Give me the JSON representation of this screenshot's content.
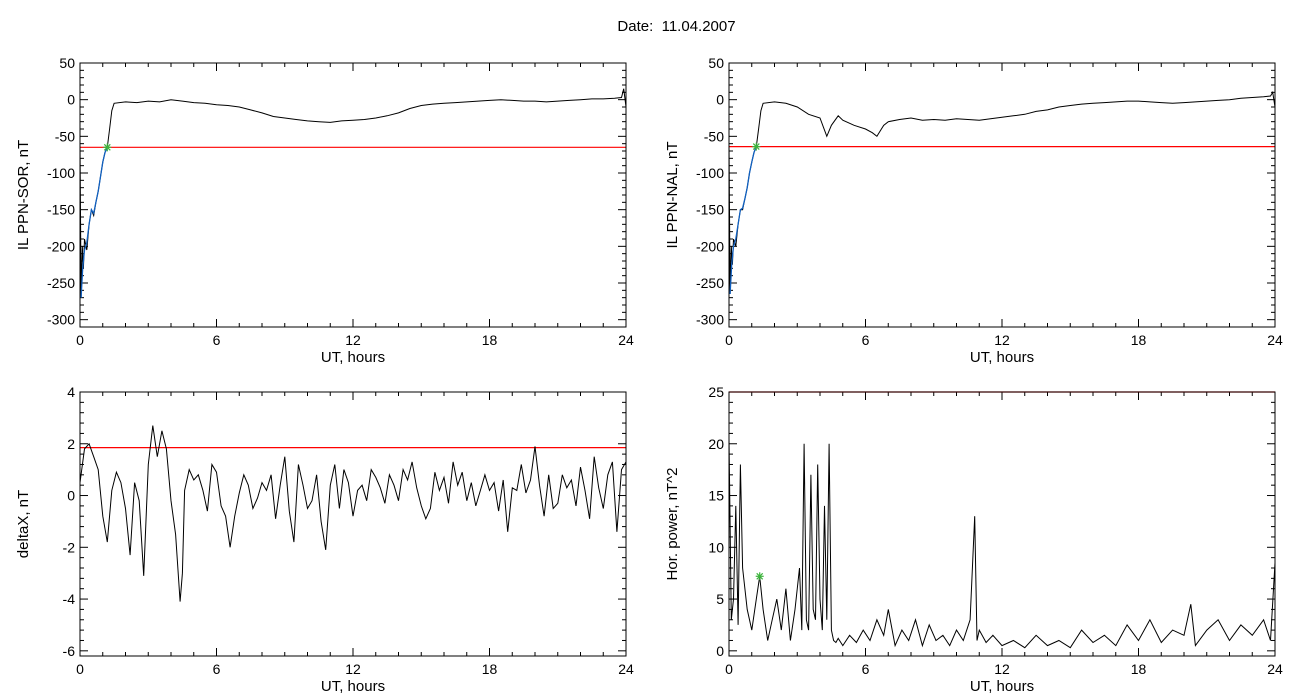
{
  "title": "Date:  11.04.2007",
  "colors": {
    "axis": "#000000",
    "data": "#000000",
    "threshold": "#ff0000",
    "fit": "#1060c0",
    "marker": "#3cb43c"
  },
  "chart_data": [
    {
      "type": "line",
      "id": "sor",
      "xlabel": "UT, hours",
      "ylabel": "IL PPN-SOR, nT",
      "xlim": [
        0,
        24
      ],
      "ylim": [
        -310,
        50
      ],
      "xticks": [
        0,
        6,
        12,
        18,
        24
      ],
      "yticks": [
        50,
        0,
        -50,
        -100,
        -150,
        -200,
        -250,
        -300
      ],
      "threshold": -65,
      "marker": {
        "x": 1.2,
        "y": -65
      },
      "fit_segment": {
        "x": [
          0.05,
          0.12,
          0.2,
          0.3,
          0.4,
          0.5,
          0.6,
          0.7,
          0.8,
          0.9,
          1.0,
          1.1,
          1.2
        ],
        "y": [
          -270,
          -230,
          -205,
          -195,
          -170,
          -150,
          -155,
          -140,
          -125,
          -105,
          -85,
          -72,
          -65
        ]
      },
      "series": [
        {
          "x": [
            0,
            0.05,
            0.1,
            0.15,
            0.2,
            0.3,
            0.4,
            0.5,
            0.6,
            0.7,
            0.8,
            0.9,
            1.0,
            1.1,
            1.2,
            1.3,
            1.4,
            1.5,
            2,
            2.5,
            3,
            3.5,
            4,
            4.5,
            5,
            5.5,
            6,
            6.5,
            7,
            7.5,
            8,
            8.5,
            9,
            9.5,
            10,
            10.5,
            11,
            11.5,
            12,
            12.5,
            13,
            13.5,
            14,
            14.5,
            15,
            15.5,
            16,
            16.5,
            17,
            17.5,
            18,
            18.5,
            19,
            19.5,
            20,
            20.5,
            21,
            21.5,
            22,
            22.5,
            23,
            23.5,
            23.8,
            23.9,
            24
          ],
          "y": [
            -60,
            -270,
            -200,
            -230,
            -190,
            -205,
            -170,
            -150,
            -158,
            -140,
            -125,
            -105,
            -85,
            -72,
            -65,
            -40,
            -15,
            -5,
            -3,
            -4,
            -2,
            -3,
            0,
            -2,
            -4,
            -5,
            -7,
            -8,
            -10,
            -14,
            -18,
            -23,
            -25,
            -27,
            -29,
            -30,
            -31,
            -29,
            -28,
            -27,
            -25,
            -22,
            -18,
            -12,
            -8,
            -6,
            -5,
            -4,
            -3,
            -2,
            -1,
            0,
            -1,
            -2,
            -2,
            -3,
            -2,
            -1,
            0,
            1,
            1,
            2,
            3,
            15,
            -10
          ]
        }
      ]
    },
    {
      "type": "line",
      "id": "nal",
      "xlabel": "UT, hours",
      "ylabel": "IL PPN-NAL, nT",
      "xlim": [
        0,
        24
      ],
      "ylim": [
        -310,
        50
      ],
      "xticks": [
        0,
        6,
        12,
        18,
        24
      ],
      "yticks": [
        50,
        0,
        -50,
        -100,
        -150,
        -200,
        -250,
        -300
      ],
      "threshold": -64,
      "marker": {
        "x": 1.2,
        "y": -64
      },
      "fit_segment": {
        "x": [
          0.05,
          0.12,
          0.2,
          0.3,
          0.4,
          0.5,
          0.6,
          0.7,
          0.8,
          0.9,
          1.0,
          1.1,
          1.2
        ],
        "y": [
          -265,
          -225,
          -200,
          -190,
          -170,
          -150,
          -148,
          -135,
          -120,
          -100,
          -85,
          -72,
          -64
        ]
      },
      "series": [
        {
          "x": [
            0,
            0.05,
            0.1,
            0.15,
            0.2,
            0.3,
            0.4,
            0.5,
            0.6,
            0.7,
            0.8,
            0.9,
            1.0,
            1.1,
            1.2,
            1.3,
            1.4,
            1.5,
            2,
            2.5,
            3,
            3.5,
            4,
            4.3,
            4.5,
            4.8,
            5,
            5.5,
            6,
            6.3,
            6.5,
            6.8,
            7,
            7.5,
            8,
            8.5,
            9,
            9.5,
            10,
            10.5,
            11,
            11.5,
            12,
            12.5,
            13,
            13.5,
            14,
            14.5,
            15,
            15.5,
            16,
            16.5,
            17,
            17.5,
            18,
            18.5,
            19,
            19.5,
            20,
            20.5,
            21,
            21.5,
            22,
            22.5,
            23,
            23.5,
            23.8,
            23.9,
            24
          ],
          "y": [
            -60,
            -265,
            -200,
            -225,
            -190,
            -200,
            -170,
            -150,
            -150,
            -135,
            -120,
            -100,
            -85,
            -72,
            -64,
            -40,
            -15,
            -5,
            -3,
            -5,
            -10,
            -20,
            -25,
            -50,
            -35,
            -22,
            -28,
            -35,
            -40,
            -45,
            -50,
            -35,
            -30,
            -27,
            -25,
            -28,
            -27,
            -28,
            -26,
            -27,
            -28,
            -26,
            -24,
            -22,
            -20,
            -16,
            -14,
            -10,
            -8,
            -6,
            -5,
            -4,
            -3,
            -2,
            -2,
            -3,
            -4,
            -5,
            -4,
            -3,
            -2,
            -1,
            0,
            2,
            3,
            4,
            5,
            10,
            -10
          ]
        }
      ]
    },
    {
      "type": "line",
      "id": "deltax",
      "xlabel": "UT, hours",
      "ylabel": "deltaX, nT",
      "xlim": [
        0,
        24
      ],
      "ylim": [
        -6.2,
        4
      ],
      "xticks": [
        0,
        6,
        12,
        18,
        24
      ],
      "yticks": [
        4,
        2,
        0,
        -2,
        -4,
        -6
      ],
      "threshold": 1.85,
      "series": [
        {
          "x": [
            0,
            0.2,
            0.4,
            0.6,
            0.8,
            1.0,
            1.2,
            1.4,
            1.6,
            1.8,
            2.0,
            2.2,
            2.4,
            2.6,
            2.8,
            3.0,
            3.2,
            3.4,
            3.6,
            3.8,
            4.0,
            4.2,
            4.4,
            4.5,
            4.6,
            4.8,
            5.0,
            5.2,
            5.4,
            5.6,
            5.8,
            6.0,
            6.2,
            6.4,
            6.6,
            6.8,
            7.0,
            7.2,
            7.4,
            7.6,
            7.8,
            8.0,
            8.2,
            8.4,
            8.6,
            8.8,
            9.0,
            9.2,
            9.4,
            9.6,
            9.8,
            10.0,
            10.2,
            10.4,
            10.6,
            10.8,
            11.0,
            11.2,
            11.4,
            11.6,
            11.8,
            12.0,
            12.2,
            12.4,
            12.6,
            12.8,
            13.0,
            13.2,
            13.4,
            13.6,
            13.8,
            14.0,
            14.2,
            14.4,
            14.6,
            14.8,
            15.0,
            15.2,
            15.4,
            15.6,
            15.8,
            16.0,
            16.2,
            16.4,
            16.6,
            16.8,
            17.0,
            17.2,
            17.4,
            17.6,
            17.8,
            18.0,
            18.2,
            18.4,
            18.6,
            18.8,
            19.0,
            19.2,
            19.4,
            19.6,
            19.8,
            20.0,
            20.2,
            20.4,
            20.6,
            20.8,
            21.0,
            21.2,
            21.4,
            21.6,
            21.8,
            22.0,
            22.2,
            22.4,
            22.6,
            22.8,
            23.0,
            23.2,
            23.4,
            23.6,
            23.8,
            24.0
          ],
          "y": [
            0.5,
            1.8,
            2.0,
            1.5,
            1.0,
            -0.8,
            -1.8,
            0.2,
            0.9,
            0.5,
            -0.5,
            -2.3,
            0.5,
            -0.2,
            -3.1,
            1.2,
            2.7,
            1.5,
            2.5,
            1.8,
            -0.2,
            -1.5,
            -4.1,
            -3.0,
            0.2,
            1.0,
            0.6,
            0.8,
            0.2,
            -0.6,
            1.2,
            0.9,
            -0.4,
            -0.8,
            -2.0,
            -0.8,
            0.1,
            0.8,
            0.4,
            -0.5,
            -0.1,
            0.5,
            0.2,
            0.8,
            -0.9,
            0.4,
            1.5,
            -0.6,
            -1.8,
            1.2,
            0.4,
            -0.5,
            -0.2,
            0.8,
            -1.0,
            -2.1,
            0.4,
            1.2,
            -0.5,
            1.0,
            0.5,
            -0.8,
            0.2,
            0.4,
            -0.2,
            1.0,
            0.7,
            0.3,
            -0.3,
            0.8,
            0.4,
            -0.2,
            1.0,
            0.6,
            1.3,
            0.3,
            -0.4,
            -0.9,
            -0.5,
            0.9,
            0.2,
            0.7,
            -0.3,
            1.3,
            0.4,
            0.9,
            -0.2,
            0.5,
            -0.4,
            0.2,
            0.8,
            0.2,
            0.5,
            -0.6,
            0.6,
            -1.4,
            0.3,
            0.2,
            1.2,
            0.1,
            0.6,
            1.9,
            0.4,
            -0.8,
            0.8,
            -0.5,
            -0.3,
            0.8,
            0.3,
            0.6,
            -0.4,
            1.1,
            0.2,
            -0.9,
            1.5,
            0.3,
            -0.5,
            0.8,
            1.3,
            -1.4,
            1.0,
            1.3
          ]
        }
      ]
    },
    {
      "type": "line",
      "id": "hpower",
      "xlabel": "UT, hours",
      "ylabel": "Hor. power, nT^2",
      "xlim": [
        0,
        24
      ],
      "ylim": [
        -0.5,
        25
      ],
      "xticks": [
        0,
        6,
        12,
        18,
        24
      ],
      "yticks": [
        25,
        20,
        15,
        10,
        5,
        0
      ],
      "threshold": 25,
      "marker": {
        "x": 1.35,
        "y": 7.2
      },
      "series": [
        {
          "x": [
            0,
            0.1,
            0.2,
            0.3,
            0.4,
            0.5,
            0.6,
            0.8,
            1.0,
            1.2,
            1.35,
            1.5,
            1.7,
            1.9,
            2.1,
            2.3,
            2.5,
            2.7,
            2.9,
            3.1,
            3.2,
            3.3,
            3.4,
            3.5,
            3.6,
            3.7,
            3.8,
            3.9,
            4.0,
            4.1,
            4.2,
            4.3,
            4.4,
            4.5,
            4.6,
            4.7,
            4.8,
            5.0,
            5.3,
            5.6,
            5.9,
            6.2,
            6.5,
            6.8,
            7.0,
            7.3,
            7.6,
            7.9,
            8.2,
            8.5,
            8.8,
            9.1,
            9.4,
            9.7,
            10.0,
            10.3,
            10.6,
            10.8,
            10.9,
            11.0,
            11.3,
            11.6,
            12.0,
            12.5,
            13.0,
            13.5,
            14.0,
            14.5,
            15.0,
            15.5,
            16.0,
            16.5,
            17.0,
            17.5,
            18.0,
            18.5,
            19.0,
            19.5,
            20.0,
            20.3,
            20.5,
            21.0,
            21.5,
            22.0,
            22.5,
            23.0,
            23.5,
            23.8,
            24.0
          ],
          "y": [
            20.5,
            3,
            5,
            14,
            2.5,
            18,
            8,
            4,
            2,
            5,
            7.2,
            4,
            1,
            3,
            5,
            2,
            6,
            1,
            4,
            8,
            2,
            20,
            3,
            2,
            17,
            4,
            3,
            18,
            5,
            2,
            14,
            3,
            20,
            2,
            1,
            0.8,
            1.2,
            0.5,
            1.5,
            0.8,
            2,
            1,
            3,
            1.5,
            4,
            0.5,
            2,
            1,
            3,
            0.5,
            2.5,
            1,
            1.5,
            0.5,
            2,
            1,
            3,
            13,
            1,
            2,
            0.8,
            1.5,
            0.5,
            1,
            0.3,
            1.5,
            0.5,
            1,
            0.3,
            2,
            0.8,
            1.5,
            0.5,
            2.5,
            1,
            3,
            0.8,
            2,
            1.5,
            4.5,
            0.5,
            2,
            3,
            1,
            2.5,
            1.5,
            3,
            1,
            8.5
          ]
        }
      ]
    }
  ]
}
